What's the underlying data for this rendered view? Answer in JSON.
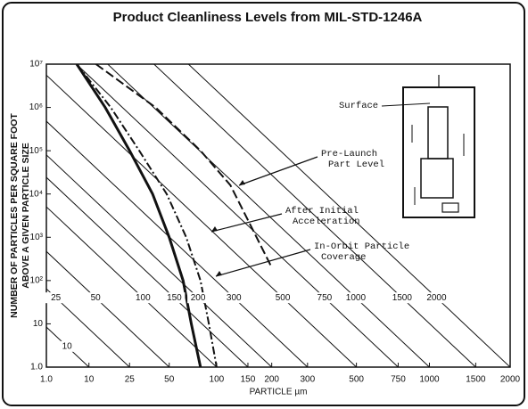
{
  "chart_data": {
    "type": "line",
    "title": "Product Cleanliness Levels from MIL-STD-1246A",
    "ylabel": [
      "NUMBER OF PARTICLES PER SQUARE FOOT",
      "ABOVE A GIVEN PARTICLE SIZE"
    ],
    "xlabel": "PARTICLE µm",
    "xscale": "log-squared",
    "yscale": "log",
    "xlim": [
      1,
      2000
    ],
    "ylim": [
      1,
      10000000
    ],
    "xticks": [
      {
        "value": 1,
        "label": "1.0"
      },
      10,
      25,
      50,
      100,
      150,
      200,
      300,
      500,
      750,
      1000,
      1500,
      2000
    ],
    "yticks": [
      {
        "value": 1,
        "label": "1.0"
      },
      10,
      {
        "value": 100,
        "label": "10²"
      },
      {
        "value": 1000,
        "label": "10³"
      },
      {
        "value": 10000,
        "label": "10⁴"
      },
      {
        "value": 100000,
        "label": "10⁵"
      },
      {
        "value": 1000000,
        "label": "10⁶"
      },
      {
        "value": 10000000,
        "label": "10⁷"
      }
    ],
    "levels": [
      10,
      25,
      50,
      100,
      150,
      200,
      300,
      500,
      750,
      1000,
      1500,
      2000
    ],
    "series": [
      {
        "label": [
          "Pre-Launch",
          "Part Level"
        ],
        "style": "dashed",
        "color": "#111",
        "x": [
          12,
          40,
          80,
          120,
          200
        ],
        "y": [
          10000000,
          1000000,
          100000,
          16000,
          200
        ]
      },
      {
        "label": [
          "After Initial",
          "Acceleration"
        ],
        "style": "dashdot",
        "color": "#111",
        "x": [
          7,
          17,
          30,
          48,
          65,
          80,
          90,
          100
        ],
        "y": [
          10000000,
          1000000,
          100000,
          10000,
          1000,
          100,
          10,
          1
        ]
      },
      {
        "label": [
          "In-Orbit Particle",
          "Coverage"
        ],
        "style": "solid",
        "color": "#111",
        "x": [
          7,
          15,
          25,
          38,
          50,
          62,
          70,
          80
        ],
        "y": [
          10000000,
          1000000,
          100000,
          10000,
          1000,
          100,
          10,
          1
        ]
      }
    ],
    "inset_label": "Surface"
  }
}
